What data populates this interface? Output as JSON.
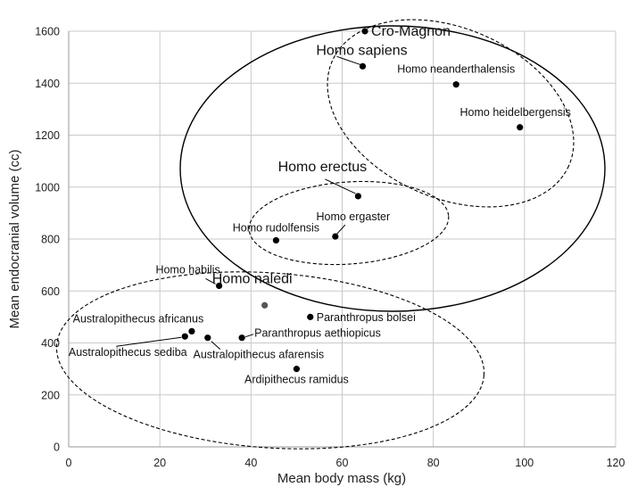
{
  "chart_data": {
    "type": "scatter",
    "title": "",
    "xlabel": "Mean body mass (kg)",
    "ylabel": "Mean endocranial volume (cc)",
    "xlim": [
      0,
      120
    ],
    "ylim": [
      0,
      1600
    ],
    "xticks": [
      0,
      20,
      40,
      60,
      80,
      100,
      120
    ],
    "yticks": [
      0,
      200,
      400,
      600,
      800,
      1000,
      1200,
      1400,
      1600
    ],
    "grid": true,
    "legend": "none",
    "point_color": "#000000",
    "highlight_color": "#555555",
    "points": [
      {
        "name": "Cro-Magnon",
        "x": 65,
        "y": 1600
      },
      {
        "name": "Homo sapiens",
        "x": 64.5,
        "y": 1465
      },
      {
        "name": "Homo neanderthalensis",
        "x": 85,
        "y": 1395
      },
      {
        "name": "Homo heidelbergensis",
        "x": 99,
        "y": 1230
      },
      {
        "name": "Homo erectus",
        "x": 63.5,
        "y": 965
      },
      {
        "name": "Homo ergaster",
        "x": 58.5,
        "y": 810
      },
      {
        "name": "Homo rudolfensis",
        "x": 45.5,
        "y": 795
      },
      {
        "name": "Homo habilis",
        "x": 33,
        "y": 620
      },
      {
        "name": "Homo naledi",
        "x": 43,
        "y": 545
      },
      {
        "name": "Paranthropus bolsei",
        "x": 53,
        "y": 500
      },
      {
        "name": "Australopithecus africanus",
        "x": 27,
        "y": 445
      },
      {
        "name": "Australopithecus sediba",
        "x": 25.5,
        "y": 425
      },
      {
        "name": "Australopithecus afarensis",
        "x": 30.5,
        "y": 420
      },
      {
        "name": "Paranthropus aethiopicus",
        "x": 38,
        "y": 420
      },
      {
        "name": "Ardipithecus ramidus",
        "x": 50,
        "y": 300
      }
    ]
  }
}
